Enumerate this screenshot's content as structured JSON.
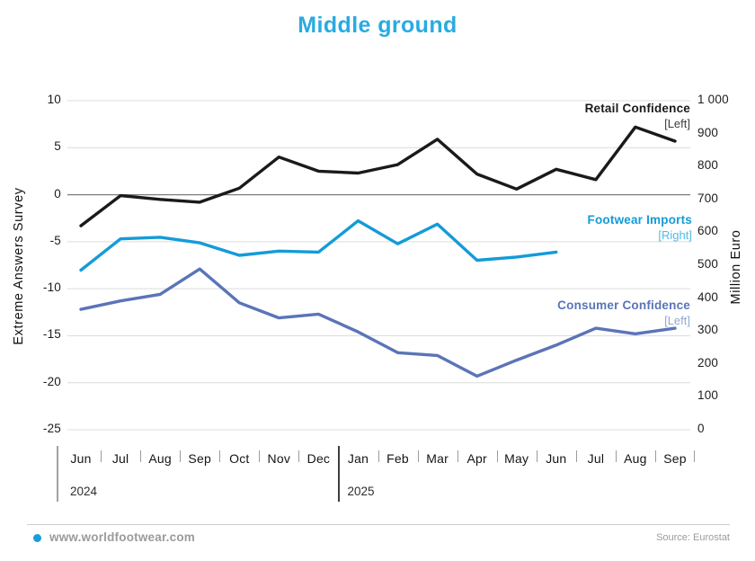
{
  "title": "Middle ground",
  "title_color": "#29ABE2",
  "chart_data": {
    "type": "line",
    "categories": [
      "Jun",
      "Jul",
      "Aug",
      "Sep",
      "Oct",
      "Nov",
      "Dec",
      "Jan",
      "Feb",
      "Mar",
      "Apr",
      "May",
      "Jun",
      "Jul",
      "Aug",
      "Sep"
    ],
    "x_years": [
      {
        "label": "2024",
        "index": 0
      },
      {
        "label": "2025",
        "index": 7
      }
    ],
    "axes": {
      "left": {
        "title": "Extreme Answers Survey",
        "min": -25,
        "max": 10,
        "step": 5
      },
      "right": {
        "title": "Million Euro",
        "min": 0,
        "max": 1000,
        "step": 100,
        "thousand_label": "1 000"
      }
    },
    "grid": "horizontal",
    "legend_position": "inline-right",
    "series": [
      {
        "name": "Retail Confidence",
        "tag": "[Left]",
        "axis": "left",
        "color": "#1a1a1a",
        "tag_color": "#3d3d3d",
        "values": [
          -3.3,
          -0.1,
          -0.5,
          -0.8,
          0.7,
          4.0,
          2.5,
          2.3,
          3.2,
          5.9,
          2.2,
          0.6,
          2.7,
          1.6,
          7.2,
          5.7
        ]
      },
      {
        "name": "Footwear Imports",
        "tag": "[Right]",
        "axis": "right",
        "color": "#149BD8",
        "tag_color": "#55B9E6",
        "values": [
          485,
          580,
          585,
          568,
          530,
          543,
          540,
          635,
          565,
          625,
          515,
          525,
          540,
          null,
          null,
          null
        ]
      },
      {
        "name": "Consumer Confidence",
        "tag": "[Left]",
        "axis": "left",
        "color": "#5B74B8",
        "tag_color": "#92A7D2",
        "values": [
          -12.2,
          -11.3,
          -10.6,
          -7.9,
          -11.5,
          -13.1,
          -12.7,
          -14.6,
          -16.8,
          -17.1,
          -19.3,
          -17.6,
          -16.0,
          -14.2,
          -14.8,
          -14.2
        ]
      }
    ]
  },
  "footer": {
    "site": "www.worldfootwear.com",
    "source": "Source: Eurostat",
    "bullet_color": "#1B9DD9"
  }
}
